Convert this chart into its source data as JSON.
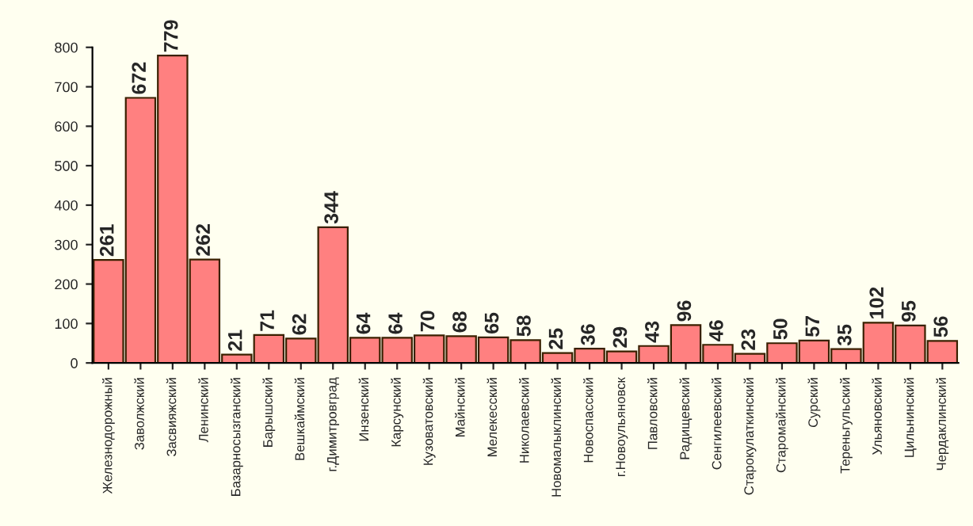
{
  "chart_data": {
    "type": "bar",
    "categories": [
      "Железнодорожный",
      "Заволжский",
      "Засвияжский",
      "Ленинский",
      "Базарносызганский",
      "Барышский",
      "Вешкаймский",
      "г.Димитровград",
      "Инзенский",
      "Карсунский",
      "Кузоватовский",
      "Майнский",
      "Мелекесский",
      "Николаевский",
      "Новомалыклинский",
      "Новоспасский",
      "г.Новоульяновск",
      "Павловский",
      "Радищевский",
      "Сенгилеевский",
      "Старокулаткинский",
      "Старомайнский",
      "Сурский",
      "Тереньгульский",
      "Ульяновский",
      "Цильнинский",
      "Чердаклинский"
    ],
    "values": [
      261,
      672,
      779,
      262,
      21,
      71,
      62,
      344,
      64,
      64,
      70,
      68,
      65,
      58,
      25,
      36,
      29,
      43,
      96,
      46,
      23,
      50,
      57,
      35,
      102,
      95,
      56
    ],
    "color": "#ff8080",
    "ylim": [
      0,
      800
    ],
    "yticks": [
      0,
      100,
      200,
      300,
      400,
      500,
      600,
      700,
      800
    ],
    "data_labels": true,
    "grid": false,
    "legend": false
  }
}
